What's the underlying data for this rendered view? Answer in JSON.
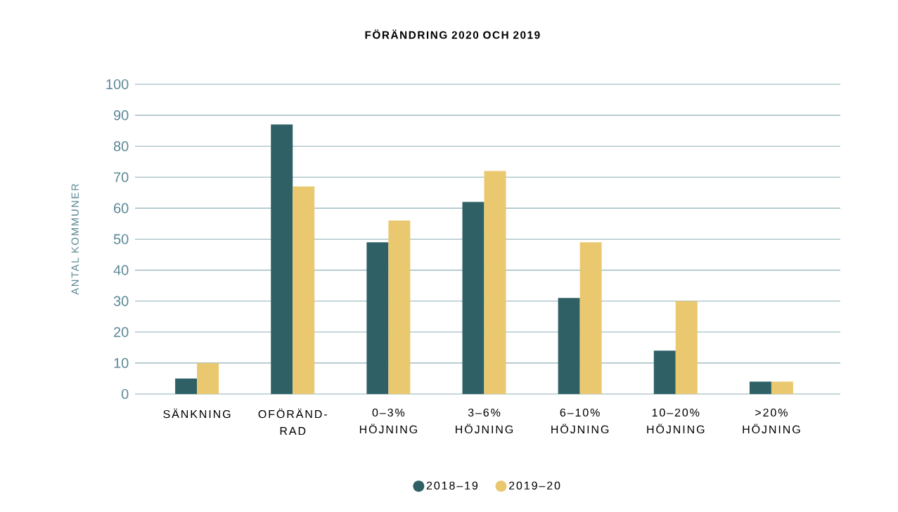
{
  "chart_data": {
    "type": "bar",
    "title": "FÖRÄNDRING 2020 OCH 2019",
    "ylabel": "ANTAL KOMMUNER",
    "categories": [
      "SÄNKNING",
      "OFÖRÄND-RAD",
      "0–3% HÖJNING",
      "3–6% HÖJNING",
      "6–10% HÖJNING",
      "10–20% HÖJNING",
      ">20% HÖJNING"
    ],
    "series": [
      {
        "name": "2018–19",
        "color": "#2e6066",
        "values": [
          5,
          87,
          49,
          62,
          31,
          14,
          4
        ]
      },
      {
        "name": "2019–20",
        "color": "#e9c870",
        "values": [
          10,
          67,
          56,
          72,
          49,
          30,
          4
        ]
      }
    ],
    "ylim": [
      0,
      100
    ],
    "yticks": [
      0,
      10,
      20,
      30,
      40,
      50,
      60,
      70,
      80,
      90,
      100
    ],
    "grid": "y",
    "legend": "bottom"
  }
}
